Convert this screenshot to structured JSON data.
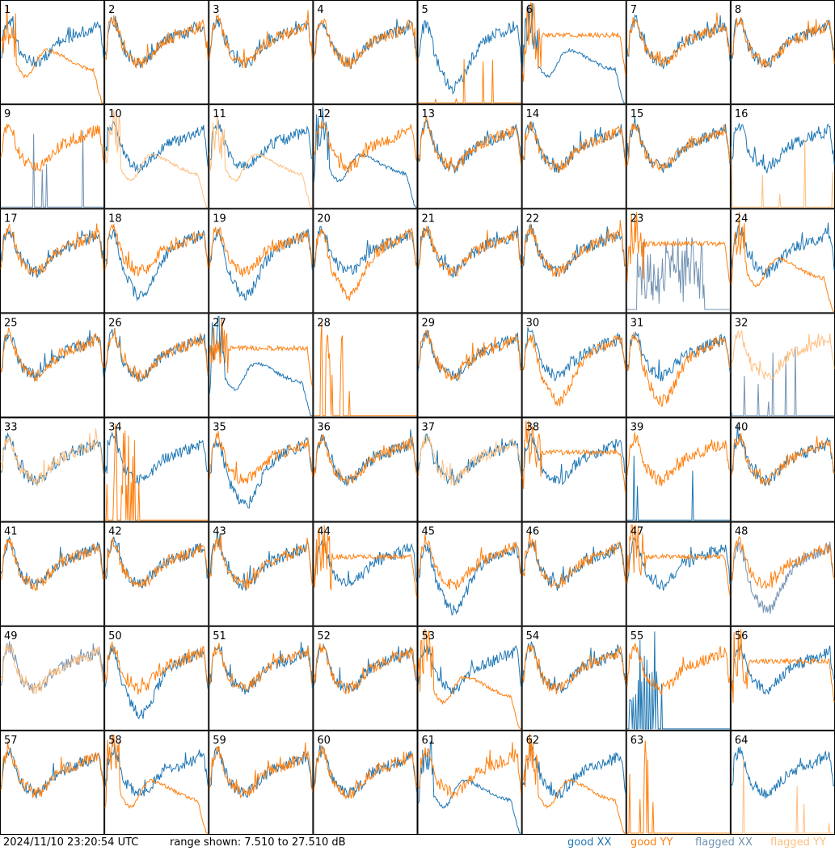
{
  "chart_data": {
    "type": "line",
    "layout": "small-multiples 8x8",
    "panel_labels": [
      "1",
      "2",
      "3",
      "4",
      "5",
      "6",
      "7",
      "8",
      "9",
      "10",
      "11",
      "12",
      "13",
      "14",
      "15",
      "16",
      "17",
      "18",
      "19",
      "20",
      "21",
      "22",
      "23",
      "24",
      "25",
      "26",
      "27",
      "28",
      "29",
      "30",
      "31",
      "32",
      "33",
      "34",
      "35",
      "36",
      "37",
      "38",
      "39",
      "40",
      "41",
      "42",
      "43",
      "44",
      "45",
      "46",
      "47",
      "48",
      "49",
      "50",
      "51",
      "52",
      "53",
      "54",
      "55",
      "56",
      "57",
      "58",
      "59",
      "60",
      "61",
      "62",
      "63",
      "64"
    ],
    "ylim": [
      7.51,
      27.51
    ],
    "yunit": "dB",
    "series_legend": [
      "good XX",
      "good YY",
      "flagged XX",
      "flagged YY"
    ],
    "colors": {
      "good_xx": "#1f77b4",
      "good_yy": "#ff7f0e",
      "flagged_xx": "#7393b3",
      "flagged_yy": "#ffbf80"
    },
    "panels": [
      {
        "id": 1,
        "xx": "normal",
        "yy": "dip",
        "yy_flag": false,
        "xx_flag": false
      },
      {
        "id": 2,
        "xx": "normal",
        "yy": "normal"
      },
      {
        "id": 3,
        "xx": "normal",
        "yy": "normal"
      },
      {
        "id": 4,
        "xx": "normal",
        "yy": "normal"
      },
      {
        "id": 5,
        "xx": "bowl",
        "yy": "spikes_low"
      },
      {
        "id": 6,
        "xx": "dip",
        "yy": "high_flat"
      },
      {
        "id": 7,
        "xx": "normal",
        "yy": "normal"
      },
      {
        "id": 8,
        "xx": "normal",
        "yy": "normal"
      },
      {
        "id": 9,
        "xx": "spikes_low",
        "yy": "normal",
        "xx_flag": true
      },
      {
        "id": 10,
        "xx": "normal",
        "yy": "dip",
        "yy_flag": true
      },
      {
        "id": 11,
        "xx": "normal",
        "yy": "dip",
        "yy_flag": true
      },
      {
        "id": 12,
        "xx": "dip",
        "yy": "normal"
      },
      {
        "id": 13,
        "xx": "normal",
        "yy": "normal"
      },
      {
        "id": 14,
        "xx": "normal",
        "yy": "normal"
      },
      {
        "id": 15,
        "xx": "normal",
        "yy": "normal"
      },
      {
        "id": 16,
        "xx": "normal",
        "yy": "spikes_low",
        "yy_flag": true
      },
      {
        "id": 17,
        "xx": "normal",
        "yy": "normal"
      },
      {
        "id": 18,
        "xx": "bowl",
        "yy": "normal"
      },
      {
        "id": 19,
        "xx": "bowl",
        "yy": "normal"
      },
      {
        "id": 20,
        "xx": "normal",
        "yy": "bowl"
      },
      {
        "id": 21,
        "xx": "normal",
        "yy": "normal"
      },
      {
        "id": 22,
        "xx": "normal",
        "yy": "normal"
      },
      {
        "id": 23,
        "xx": "noise_mid",
        "yy": "high_flat",
        "xx_flag": true
      },
      {
        "id": 24,
        "xx": "normal",
        "yy": "dip"
      },
      {
        "id": 25,
        "xx": "normal",
        "yy": "normal"
      },
      {
        "id": 26,
        "xx": "normal",
        "yy": "normal"
      },
      {
        "id": 27,
        "xx": "dip",
        "yy": "high_flat"
      },
      {
        "id": 28,
        "xx": "none",
        "yy": "spikes_high"
      },
      {
        "id": 29,
        "xx": "normal",
        "yy": "normal"
      },
      {
        "id": 30,
        "xx": "normal",
        "yy": "bowl"
      },
      {
        "id": 31,
        "xx": "normal",
        "yy": "bowl"
      },
      {
        "id": 32,
        "xx": "spikes_low",
        "yy": "normal",
        "yy_flag": true,
        "xx_flag": true
      },
      {
        "id": 33,
        "xx": "normal",
        "yy": "normal",
        "yy_flag": true
      },
      {
        "id": 34,
        "xx": "normal",
        "yy": "spikes_high"
      },
      {
        "id": 35,
        "xx": "bowl",
        "yy": "normal"
      },
      {
        "id": 36,
        "xx": "normal",
        "yy": "normal"
      },
      {
        "id": 37,
        "xx": "normal",
        "yy": "normal",
        "yy_flag": true
      },
      {
        "id": 38,
        "xx": "normal",
        "yy": "high_flat"
      },
      {
        "id": 39,
        "xx": "spikes_low",
        "yy": "normal"
      },
      {
        "id": 40,
        "xx": "normal",
        "yy": "normal"
      },
      {
        "id": 41,
        "xx": "normal",
        "yy": "normal"
      },
      {
        "id": 42,
        "xx": "normal",
        "yy": "normal"
      },
      {
        "id": 43,
        "xx": "normal",
        "yy": "normal"
      },
      {
        "id": 44,
        "xx": "normal",
        "yy": "high_flat"
      },
      {
        "id": 45,
        "xx": "bowl",
        "yy": "normal"
      },
      {
        "id": 46,
        "xx": "normal",
        "yy": "normal"
      },
      {
        "id": 47,
        "xx": "normal",
        "yy": "high_flat"
      },
      {
        "id": 48,
        "xx": "bowl",
        "yy": "normal",
        "xx_flag": true
      },
      {
        "id": 49,
        "xx": "normal",
        "yy": "normal",
        "xx_flag": true,
        "yy_flag": true
      },
      {
        "id": 50,
        "xx": "bowl",
        "yy": "normal"
      },
      {
        "id": 51,
        "xx": "normal",
        "yy": "normal"
      },
      {
        "id": 52,
        "xx": "normal",
        "yy": "normal"
      },
      {
        "id": 53,
        "xx": "normal",
        "yy": "dip"
      },
      {
        "id": 54,
        "xx": "normal",
        "yy": "normal"
      },
      {
        "id": 55,
        "xx": "spikes_high",
        "yy": "normal"
      },
      {
        "id": 56,
        "xx": "normal",
        "yy": "high_flat"
      },
      {
        "id": 57,
        "xx": "normal",
        "yy": "normal"
      },
      {
        "id": 58,
        "xx": "normal",
        "yy": "dip"
      },
      {
        "id": 59,
        "xx": "normal",
        "yy": "normal"
      },
      {
        "id": 60,
        "xx": "normal",
        "yy": "normal"
      },
      {
        "id": 61,
        "xx": "dip",
        "yy": "normal"
      },
      {
        "id": 62,
        "xx": "normal",
        "yy": "dip"
      },
      {
        "id": 63,
        "xx": "none",
        "yy": "spikes_high"
      },
      {
        "id": 64,
        "xx": "normal",
        "yy": "spikes_low",
        "yy_flag": true
      }
    ]
  },
  "footer": {
    "timestamp": "2024/11/10 23:20:54 UTC",
    "range_text": "range shown: 7.510 to 27.510 dB",
    "legend": {
      "good_xx": "good XX",
      "good_yy": "good YY",
      "flagged_xx": "flagged XX",
      "flagged_yy": "flagged YY"
    }
  }
}
